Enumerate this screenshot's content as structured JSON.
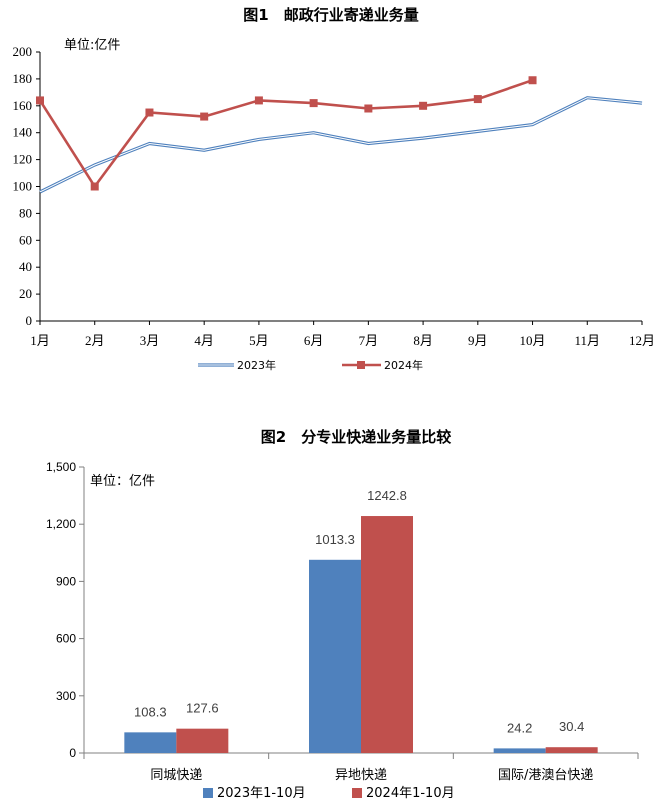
{
  "chart_data": [
    {
      "type": "line",
      "title": "图1　邮政行业寄递业务量",
      "unit_label": "单位:亿件",
      "categories": [
        "1月",
        "2月",
        "3月",
        "4月",
        "5月",
        "6月",
        "7月",
        "8月",
        "9月",
        "10月",
        "11月",
        "12月"
      ],
      "yticks": [
        "0",
        "20",
        "40",
        "60",
        "80",
        "100",
        "120",
        "140",
        "160",
        "180",
        "200"
      ],
      "ylim": [
        0,
        200
      ],
      "grid": false,
      "legend_position": "bottom",
      "series": [
        {
          "name": "2023年",
          "color": "#4f81bd",
          "marker": "none",
          "values": [
            96,
            116,
            132,
            127,
            135,
            140,
            132,
            136,
            141,
            146,
            166,
            162
          ]
        },
        {
          "name": "2024年",
          "color": "#c0504d",
          "marker": "square",
          "values": [
            164,
            100,
            155,
            152,
            164,
            162,
            158,
            160,
            165,
            179,
            null,
            null
          ]
        }
      ]
    },
    {
      "type": "bar",
      "title": "图2　分专业快递业务量比较",
      "unit_label": "单位：亿件",
      "categories": [
        "同城快递",
        "异地快递",
        "国际/港澳台快递"
      ],
      "yticks": [
        "0",
        "300",
        "600",
        "900",
        "1,200",
        "1,500"
      ],
      "ylim": [
        0,
        1500
      ],
      "grid": false,
      "legend_position": "bottom",
      "series": [
        {
          "name": "2023年1-10月",
          "color": "#4f81bd",
          "values": [
            108.3,
            1013.3,
            24.2
          ],
          "labels": [
            "108.3",
            "1013.3",
            "24.2"
          ]
        },
        {
          "name": "2024年1-10月",
          "color": "#c0504d",
          "values": [
            127.6,
            1242.8,
            30.4
          ],
          "labels": [
            "127.6",
            "1242.8",
            "30.4"
          ]
        }
      ]
    }
  ]
}
